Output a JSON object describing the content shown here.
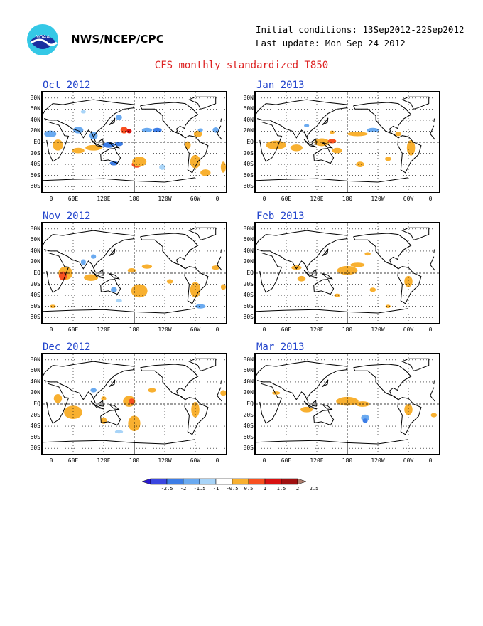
{
  "header": {
    "agency": "NWS/NCEP/CPC",
    "initial_conditions": "Initial conditions: 13Sep2012-22Sep2012",
    "last_update": "Last update: Mon Sep 24 2012",
    "title": "CFS monthly standardized T850",
    "logo_text": "NOAA"
  },
  "axes": {
    "lat_labels": [
      "80N",
      "60N",
      "40N",
      "20N",
      "EQ",
      "20S",
      "40S",
      "60S",
      "80S"
    ],
    "lon_labels": [
      "0",
      "60E",
      "120E",
      "180",
      "120W",
      "60W",
      "0"
    ]
  },
  "panels": [
    {
      "label": "Oct 2012"
    },
    {
      "label": "Jan 2013"
    },
    {
      "label": "Nov 2012"
    },
    {
      "label": "Feb 2013"
    },
    {
      "label": "Dec 2012"
    },
    {
      "label": "Mar 2013"
    }
  ],
  "colorbar": {
    "labels": [
      "-2.5",
      "-2",
      "-1.5",
      "-1",
      "-0.5",
      "0.5",
      "1",
      "1.5",
      "2",
      "2.5"
    ],
    "colors": [
      "#2a1ad0",
      "#3a46e0",
      "#3c7de6",
      "#6aaaf0",
      "#a8d4f8",
      "#ffffff",
      "#f8b030",
      "#f85020",
      "#d81010",
      "#a01010",
      "#b08070"
    ]
  }
}
